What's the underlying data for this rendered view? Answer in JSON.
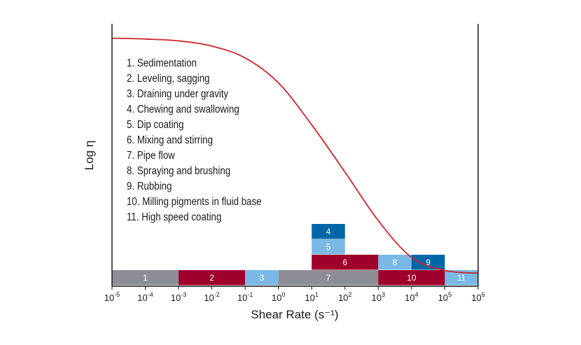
{
  "chart_data": {
    "type": "area",
    "xlabel": "Shear Rate (s⁻¹)",
    "ylabel": "Log η",
    "x_scale": "log",
    "xlim": [
      1e-05,
      1000000
    ],
    "xticks": [
      {
        "value": 1e-05,
        "base": "10",
        "exp": "-5"
      },
      {
        "value": 0.0001,
        "base": "10",
        "exp": "-4"
      },
      {
        "value": 0.001,
        "base": "10",
        "exp": "-3"
      },
      {
        "value": 0.01,
        "base": "10",
        "exp": "-2"
      },
      {
        "value": 0.1,
        "base": "10",
        "exp": "-1"
      },
      {
        "value": 1,
        "base": "10",
        "exp": "0"
      },
      {
        "value": 10,
        "base": "10",
        "exp": "1"
      },
      {
        "value": 100,
        "base": "10",
        "exp": "2"
      },
      {
        "value": 1000,
        "base": "10",
        "exp": "3"
      },
      {
        "value": 10000,
        "base": "10",
        "exp": "4"
      },
      {
        "value": 100000,
        "base": "10",
        "exp": "5"
      },
      {
        "value": 1000000,
        "base": "10",
        "exp": "6"
      }
    ],
    "curve": {
      "color": "#d2232a",
      "points": [
        [
          1e-05,
          0.945
        ],
        [
          0.0001,
          0.942
        ],
        [
          0.001,
          0.935
        ],
        [
          0.01,
          0.915
        ],
        [
          0.1,
          0.87
        ],
        [
          1,
          0.775
        ],
        [
          10,
          0.615
        ],
        [
          100,
          0.435
        ],
        [
          1000,
          0.25
        ],
        [
          10000,
          0.11
        ],
        [
          100000,
          0.06
        ],
        [
          1000000,
          0.05
        ]
      ]
    },
    "applications": [
      {
        "id": "1",
        "name": "Sedimentation",
        "x_range": [
          1e-05,
          0.001
        ],
        "row": 0,
        "color": "#8d8d96"
      },
      {
        "id": "2",
        "name": "Leveling, sagging",
        "x_range": [
          0.001,
          0.1
        ],
        "row": 0,
        "color": "#a0002c"
      },
      {
        "id": "3",
        "name": "Draining under gravity",
        "x_range": [
          0.1,
          1
        ],
        "row": 0,
        "color": "#7ab8e6"
      },
      {
        "id": "4",
        "name": "Chewing and swallowing",
        "x_range": [
          10,
          100
        ],
        "row": 3,
        "color": "#0066a6"
      },
      {
        "id": "5",
        "name": "Dip coating",
        "x_range": [
          10,
          100
        ],
        "row": 2,
        "color": "#7ab8e6"
      },
      {
        "id": "6",
        "name": "Mixing and stirring",
        "x_range": [
          10,
          1000
        ],
        "row": 1,
        "color": "#a0002c"
      },
      {
        "id": "7",
        "name": "Pipe flow",
        "x_range": [
          1,
          1000
        ],
        "row": 0,
        "color": "#8d8d96"
      },
      {
        "id": "8",
        "name": "Spraying and brushing",
        "x_range": [
          1000,
          10000
        ],
        "row": 1,
        "color": "#7ab8e6"
      },
      {
        "id": "9",
        "name": "Rubbing",
        "x_range": [
          10000,
          100000
        ],
        "row": 1,
        "color": "#0066a6"
      },
      {
        "id": "10",
        "name": "Milling pigments in fluid base",
        "x_range": [
          1000,
          100000
        ],
        "row": 0,
        "color": "#a0002c"
      },
      {
        "id": "11",
        "name": "High speed coating",
        "x_range": [
          100000,
          1000000
        ],
        "row": 0,
        "color": "#7ab8e6"
      }
    ],
    "legend": [
      "1. Sedimentation",
      "2. Leveling, sagging",
      "3. Draining under gravity",
      "4. Chewing and swallowing",
      "5. Dip coating",
      "6. Mixing and stirring",
      "7. Pipe flow",
      "8. Spraying and brushing",
      "9. Rubbing",
      "10. Milling pigments in fluid base",
      "11. High speed coating"
    ],
    "grid": false,
    "legend_position": "top-left"
  }
}
